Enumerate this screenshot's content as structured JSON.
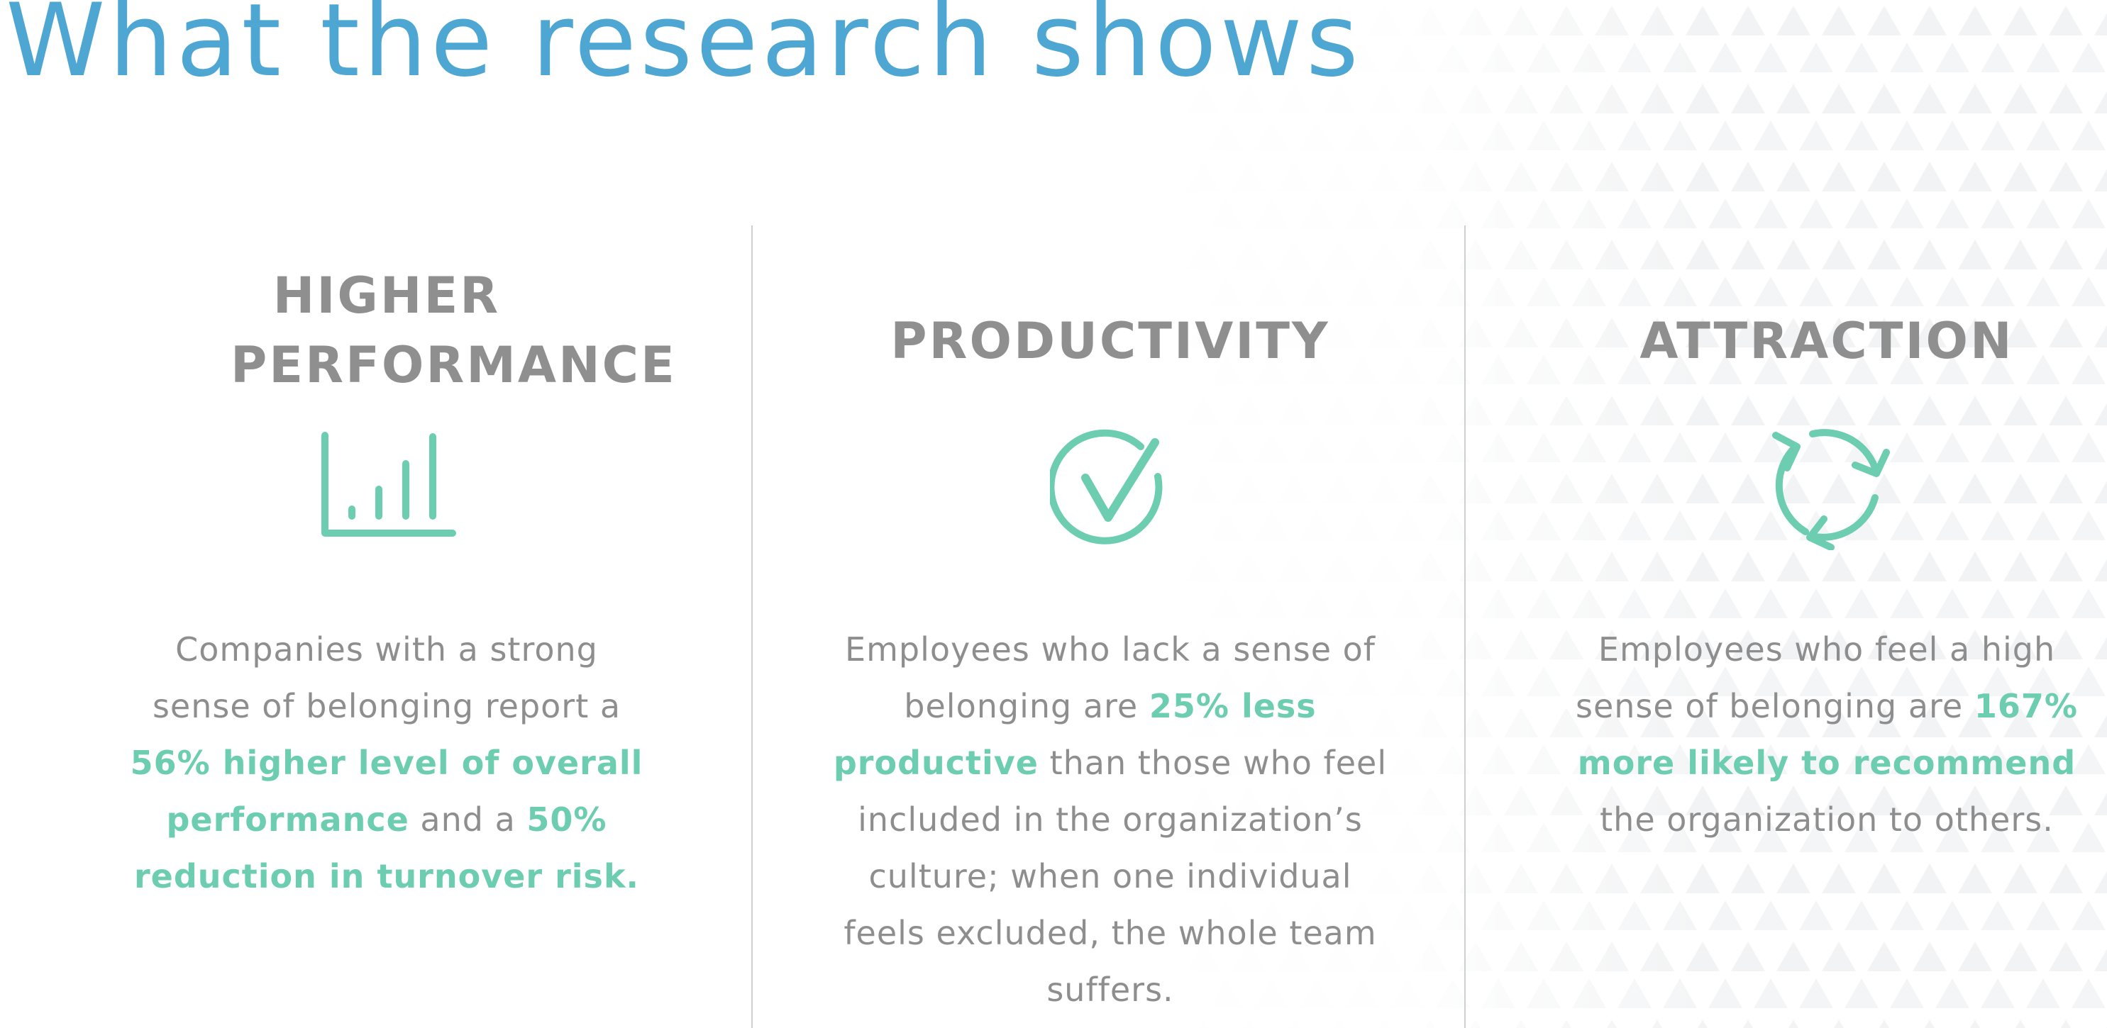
{
  "page": {
    "title": "What the research shows"
  },
  "colors": {
    "title": "#4ea6d2",
    "heading": "#8f8f8f",
    "body": "#8e8e8e",
    "accent": "#6ccdb0",
    "divider": "#cfcfcf"
  },
  "columns": [
    {
      "heading": "HIGHER PERFORMANCE",
      "icon": "bar-chart-icon",
      "text": [
        {
          "t": "Companies with a strong sense of belonging report a ",
          "hl": false
        },
        {
          "t": "56% higher level of overall performance",
          "hl": true
        },
        {
          "t": " and a ",
          "hl": false
        },
        {
          "t": "50% reduction in turnover risk.",
          "hl": true
        }
      ]
    },
    {
      "heading": "PRODUCTIVITY",
      "icon": "check-circle-icon",
      "text": [
        {
          "t": "Employees who lack a sense of belonging are ",
          "hl": false
        },
        {
          "t": "25% less productive",
          "hl": true
        },
        {
          "t": " than those who feel included in the organization’s culture; when one individual feels excluded, the whole team suffers.",
          "hl": false
        }
      ]
    },
    {
      "heading": "ATTRACTION",
      "icon": "refresh-cycle-icon",
      "text": [
        {
          "t": "Employees who feel a high sense of belonging are ",
          "hl": false
        },
        {
          "t": "167% more likely to recommend",
          "hl": true
        },
        {
          "t": " the organization to others.",
          "hl": false
        }
      ]
    }
  ]
}
